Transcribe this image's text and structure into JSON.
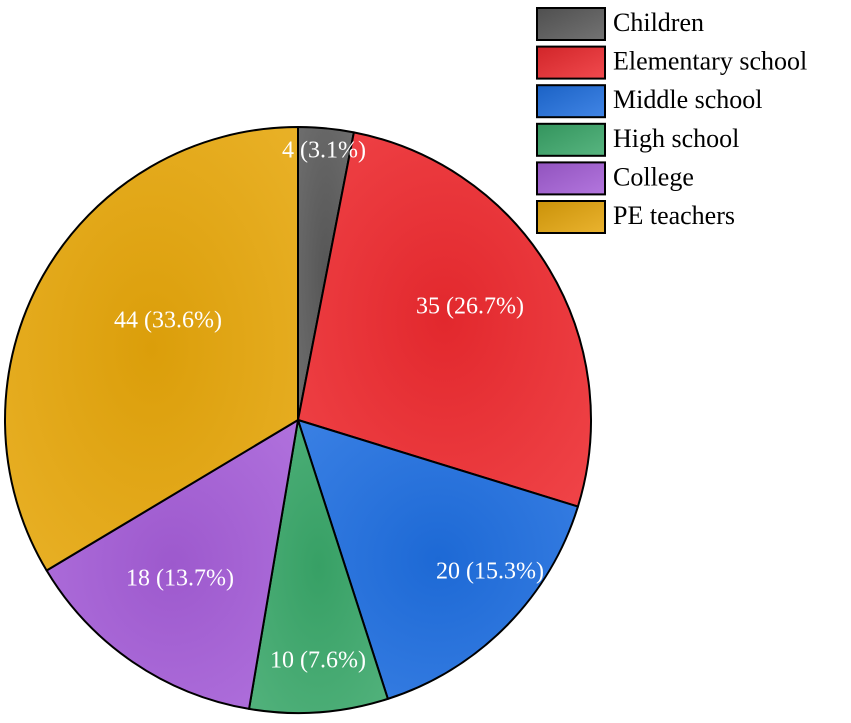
{
  "chart_data": {
    "type": "pie",
    "categories": [
      "Children",
      "Elementary school",
      "Middle school",
      "High school",
      "College",
      "PE teachers"
    ],
    "values": [
      4,
      35,
      20,
      10,
      18,
      44
    ],
    "percentages": [
      3.1,
      26.7,
      15.3,
      7.6,
      13.7,
      33.6
    ],
    "data_labels": [
      "4 (3.1%)",
      "35 (26.7%)",
      "20 (15.3%)",
      "10 (7.6%)",
      "18 (13.7%)",
      "44 (33.6%)"
    ],
    "colors": [
      "#5a5a5a",
      "#ee2a2f",
      "#1f6fe0",
      "#3aa86a",
      "#a55ed8",
      "#e6a60a"
    ],
    "start_angle": "12 o'clock",
    "direction": "clockwise",
    "legend_position": "top-right"
  }
}
